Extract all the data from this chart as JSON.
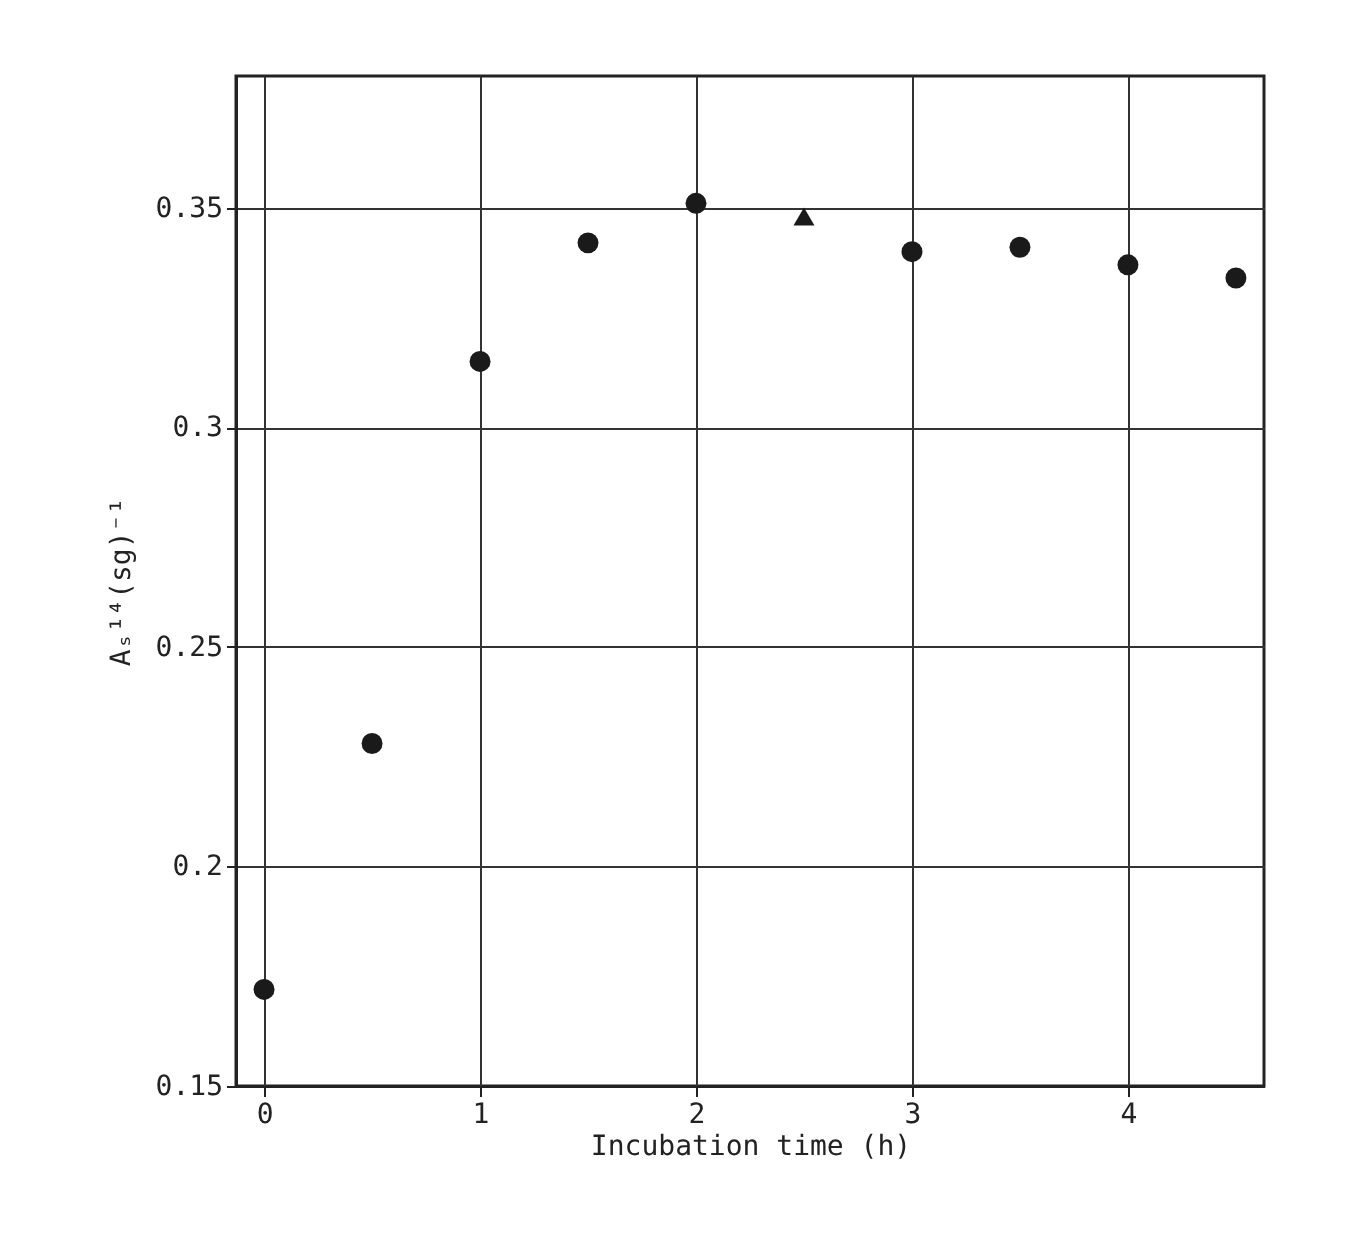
{
  "chart_data": {
    "type": "scatter",
    "xlabel": "Incubation  time  (h)",
    "ylabel": "Aₛ¹⁴(sg)⁻¹",
    "xlim": [
      -0.13,
      4.63
    ],
    "xticks": [
      0,
      1,
      2,
      3,
      4
    ],
    "ylim": [
      0.15,
      0.38
    ],
    "yticks": [
      0.15,
      0.2,
      0.25,
      0.3,
      0.35
    ],
    "grid": true,
    "series": [
      {
        "color": "#1a1a1a",
        "marker": "circle",
        "x": [
          0,
          0.5,
          1,
          1.5,
          2,
          3,
          3.5,
          4,
          4.5
        ],
        "values": [
          0.172,
          0.228,
          0.315,
          0.342,
          0.351,
          0.34,
          0.341,
          0.337,
          0.334
        ]
      },
      {
        "color": "#1a1a1a",
        "marker": "triangle",
        "x": [
          2.5
        ],
        "values": [
          0.348
        ]
      }
    ]
  }
}
